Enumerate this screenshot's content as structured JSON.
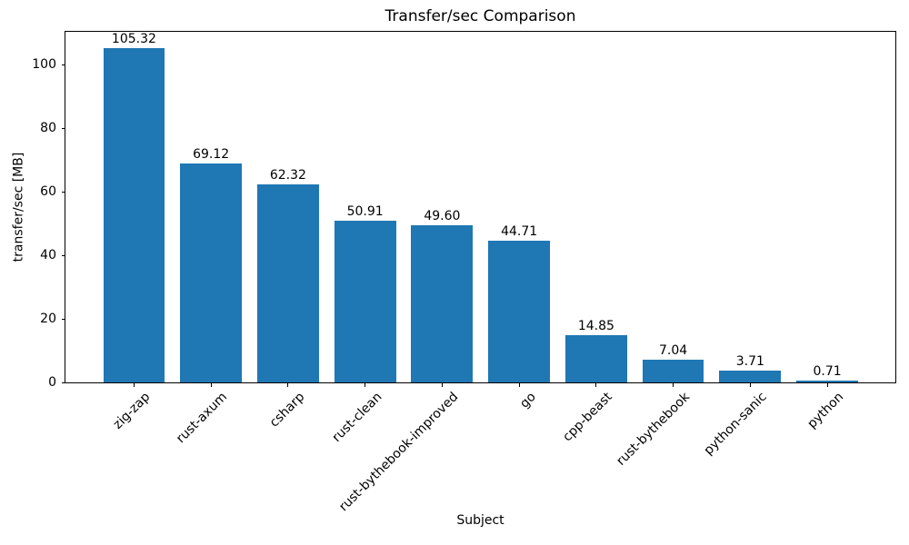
{
  "chart_data": {
    "type": "bar",
    "title": "Transfer/sec Comparison",
    "xlabel": "Subject",
    "ylabel": "transfer/sec [MB]",
    "categories": [
      "zig-zap",
      "rust-axum",
      "csharp",
      "rust-clean",
      "rust-bythebook-improved",
      "go",
      "cpp-beast",
      "rust-bythebook",
      "python-sanic",
      "python"
    ],
    "values": [
      105.32,
      69.12,
      62.32,
      50.91,
      49.6,
      44.71,
      14.85,
      7.04,
      3.71,
      0.71
    ],
    "value_labels": [
      "105.32",
      "69.12",
      "62.32",
      "50.91",
      "49.60",
      "44.71",
      "14.85",
      "7.04",
      "3.71",
      "0.71"
    ],
    "yticks": [
      0,
      20,
      40,
      60,
      80,
      100
    ],
    "ylim": [
      0,
      110.59
    ],
    "bar_color": "#1f77b4",
    "grid": false,
    "legend_position": "none"
  }
}
